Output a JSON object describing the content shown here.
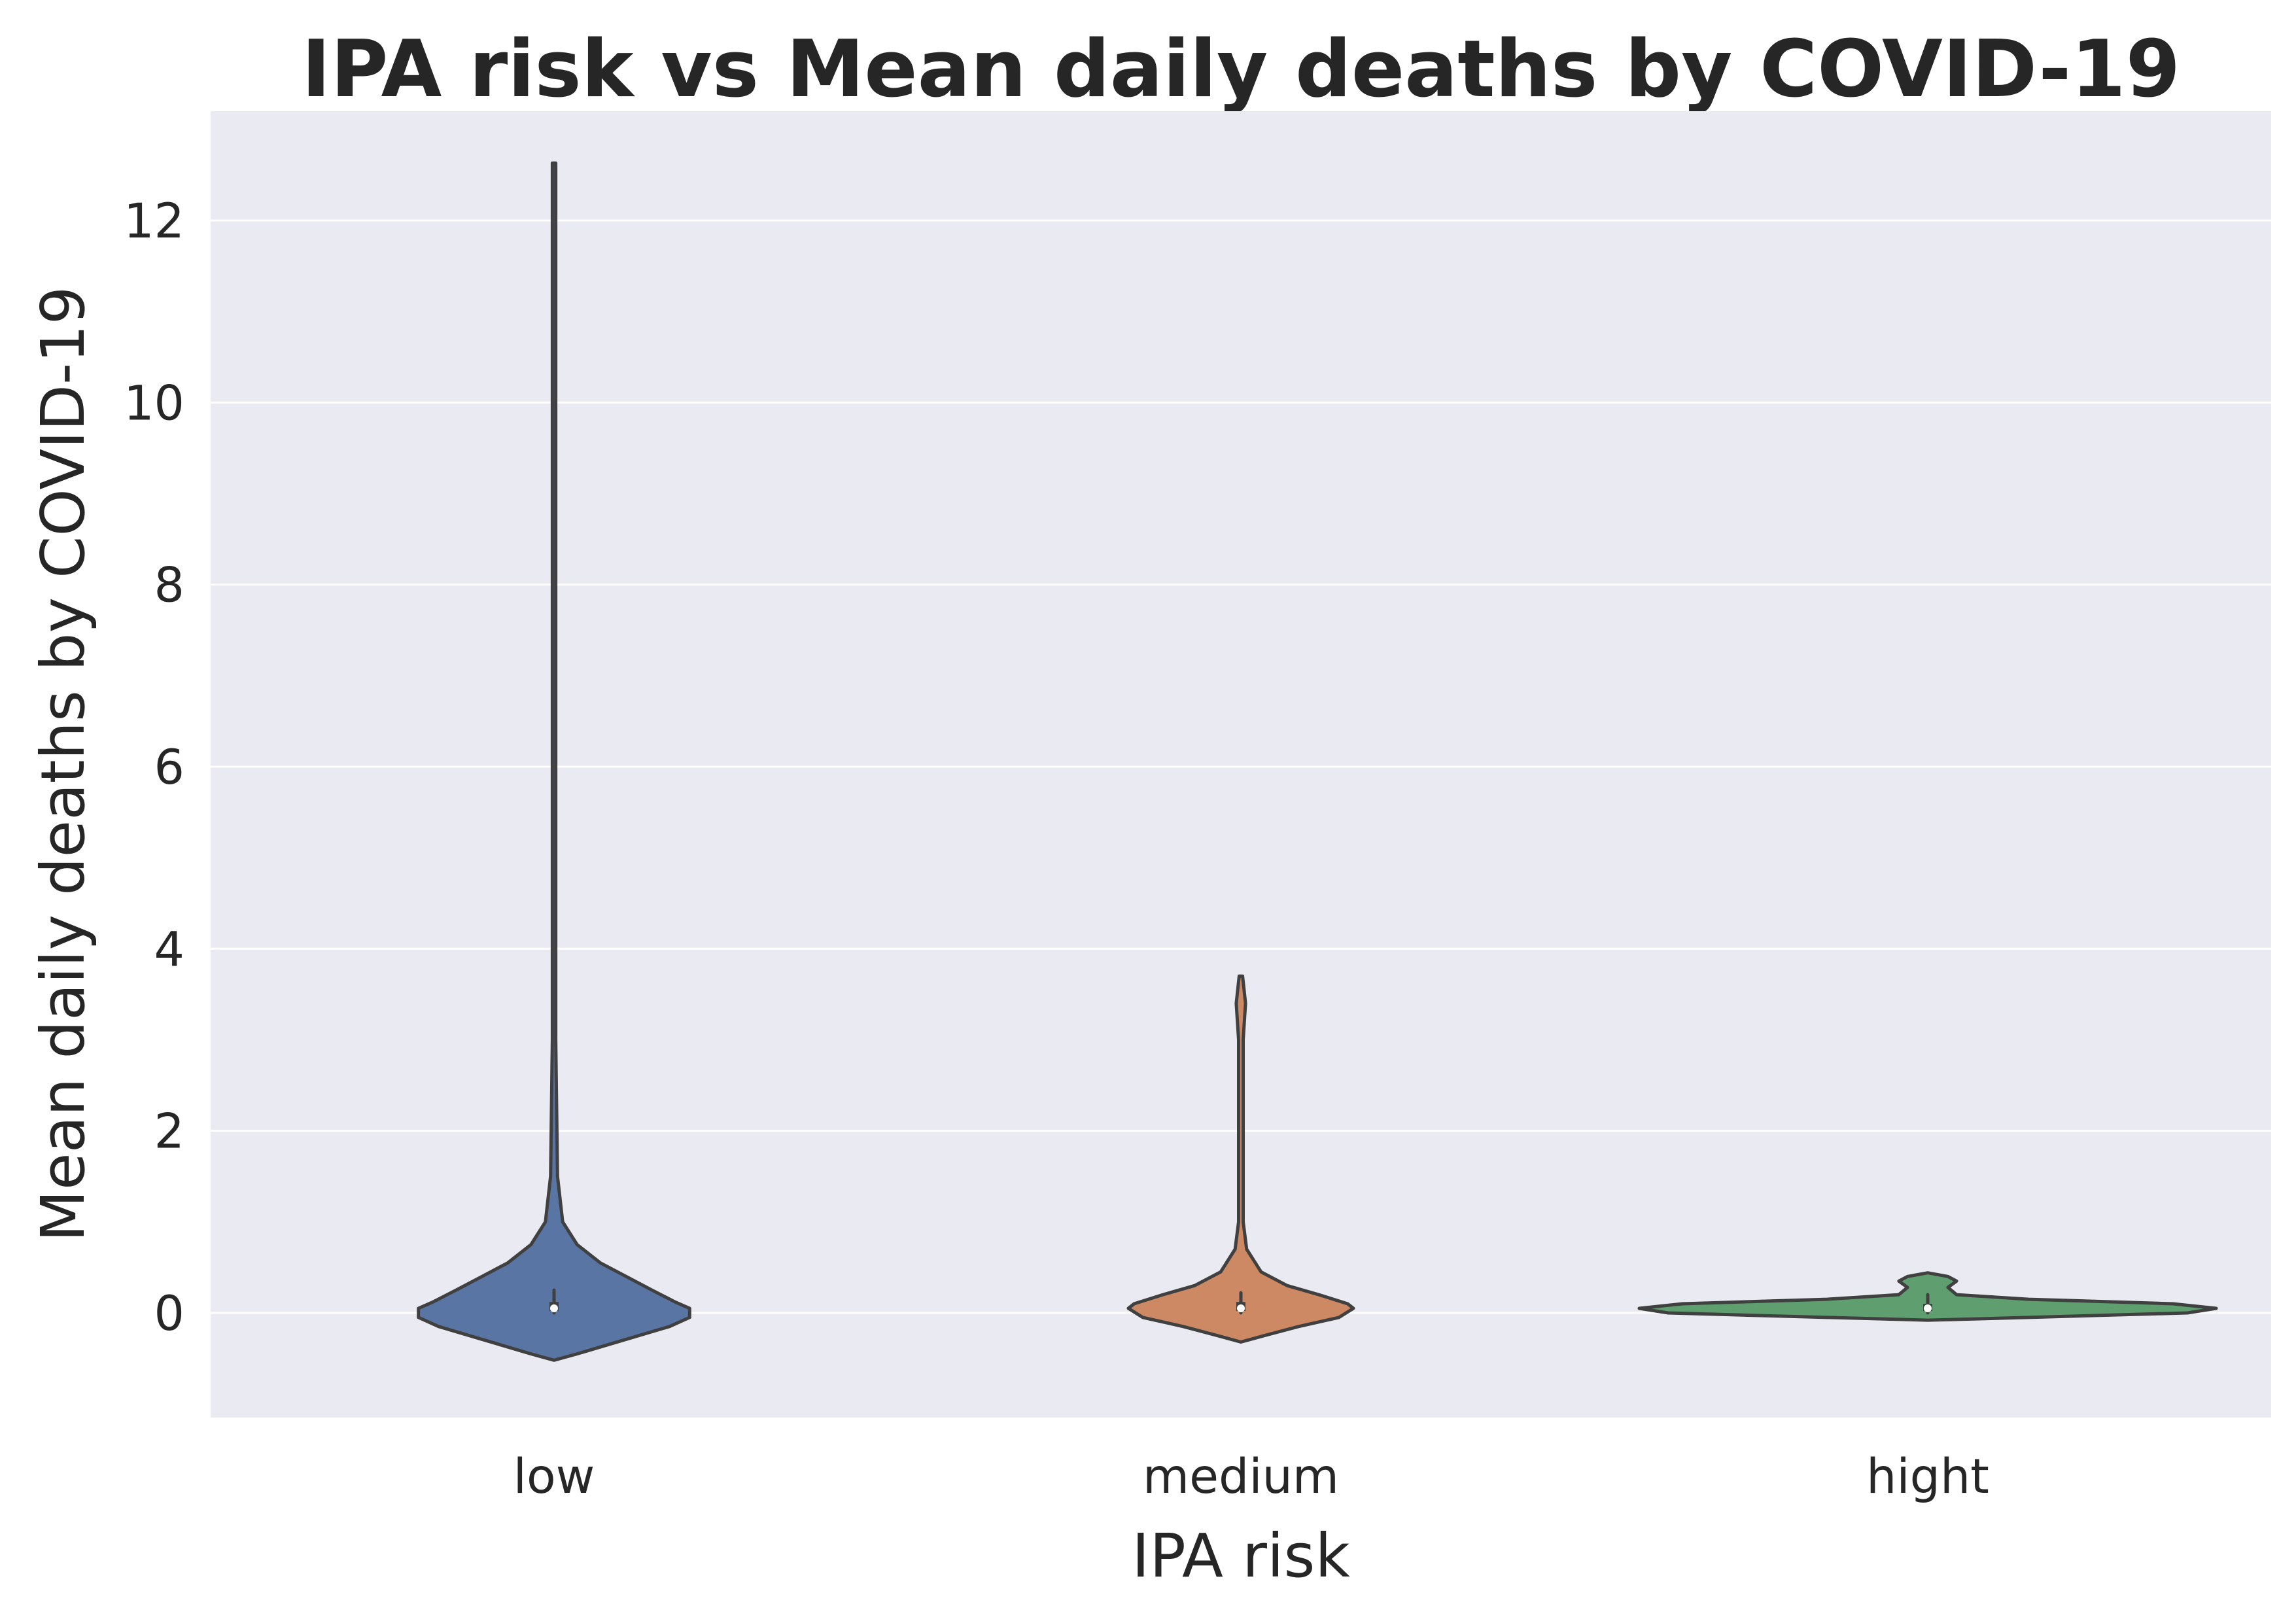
{
  "chart_data": {
    "type": "violin",
    "title": "IPA risk vs Mean daily deaths by COVID-19",
    "xlabel": "IPA risk",
    "ylabel": "Mean daily deaths by COVID-19",
    "categories": [
      "low",
      "medium",
      "hight"
    ],
    "ylim": [
      -1.15,
      13.2
    ],
    "yticks": [
      0,
      2,
      4,
      6,
      8,
      10,
      12
    ],
    "grid": true,
    "background": "#EAEAF2",
    "violins": [
      {
        "category": "low",
        "color": "#4C72B0",
        "fill": "#5975A4",
        "median": 0.05,
        "q1": 0.02,
        "q3": 0.12,
        "whisker_low": 0.0,
        "whisker_high": 0.25,
        "density": [
          [
            -0.52,
            0.0
          ],
          [
            -0.45,
            0.08
          ],
          [
            -0.3,
            0.24
          ],
          [
            -0.15,
            0.4
          ],
          [
            -0.05,
            0.47
          ],
          [
            0.05,
            0.47
          ],
          [
            0.12,
            0.42
          ],
          [
            0.25,
            0.34
          ],
          [
            0.4,
            0.25
          ],
          [
            0.55,
            0.16
          ],
          [
            0.75,
            0.08
          ],
          [
            1.0,
            0.03
          ],
          [
            1.5,
            0.012
          ],
          [
            3.0,
            0.006
          ],
          [
            12.63,
            0.006
          ]
        ]
      },
      {
        "category": "medium",
        "color": "#DD8452",
        "fill": "#CC8963",
        "median": 0.05,
        "q1": 0.02,
        "q3": 0.12,
        "whisker_low": 0.0,
        "whisker_high": 0.22,
        "density": [
          [
            -0.32,
            0.0
          ],
          [
            -0.25,
            0.08
          ],
          [
            -0.15,
            0.2
          ],
          [
            -0.05,
            0.34
          ],
          [
            0.05,
            0.39
          ],
          [
            0.1,
            0.37
          ],
          [
            0.2,
            0.27
          ],
          [
            0.3,
            0.16
          ],
          [
            0.45,
            0.07
          ],
          [
            0.7,
            0.02
          ],
          [
            1.0,
            0.008
          ],
          [
            3.0,
            0.008
          ],
          [
            3.4,
            0.016
          ],
          [
            3.7,
            0.006
          ]
        ]
      },
      {
        "category": "hight",
        "color": "#55A868",
        "fill": "#5F9E6E",
        "median": 0.05,
        "q1": 0.02,
        "q3": 0.1,
        "whisker_low": 0.0,
        "whisker_high": 0.2,
        "density": [
          [
            -0.08,
            0.0
          ],
          [
            -0.05,
            0.35
          ],
          [
            0.0,
            0.9
          ],
          [
            0.05,
            1.0
          ],
          [
            0.1,
            0.85
          ],
          [
            0.15,
            0.35
          ],
          [
            0.2,
            0.1
          ],
          [
            0.28,
            0.07
          ],
          [
            0.35,
            0.1
          ],
          [
            0.4,
            0.07
          ],
          [
            0.44,
            0.0
          ]
        ]
      }
    ]
  }
}
